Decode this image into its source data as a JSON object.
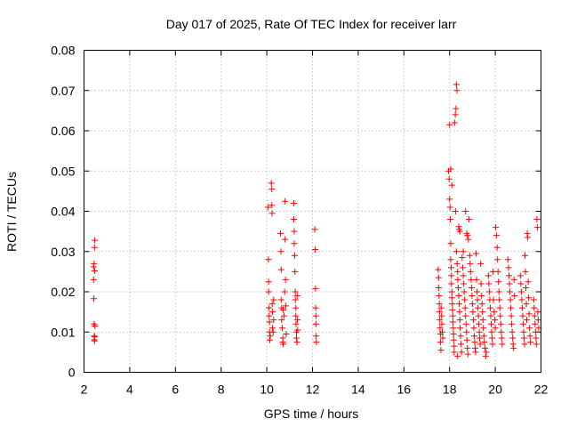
{
  "chart_data": {
    "type": "scatter",
    "title": "Day 017 of 2025, Rate Of TEC Index for receiver larr",
    "xlabel": "GPS time / hours",
    "ylabel": "ROTI / TECUs",
    "xlim": [
      2,
      22
    ],
    "ylim": [
      0,
      0.08
    ],
    "xticks": [
      2,
      4,
      6,
      8,
      10,
      12,
      14,
      16,
      18,
      20,
      22
    ],
    "yticks": [
      0,
      0.01,
      0.02,
      0.03,
      0.04,
      0.05,
      0.06,
      0.07,
      0.08
    ],
    "xtick_labels": [
      "2",
      "4",
      "6",
      "8",
      "10",
      "12",
      "14",
      "16",
      "18",
      "20",
      "22"
    ],
    "ytick_labels": [
      "0",
      "0.01",
      "0.02",
      "0.03",
      "0.04",
      "0.05",
      "0.06",
      "0.07",
      "0.08"
    ],
    "grid": true,
    "marker": "+",
    "marker_color": "#ff0000",
    "series": [
      {
        "name": "ROTI",
        "points": [
          [
            2.42,
            0.0262
          ],
          [
            2.42,
            0.023
          ],
          [
            2.43,
            0.0183
          ],
          [
            2.44,
            0.012
          ],
          [
            2.45,
            0.009
          ],
          [
            2.45,
            0.0081
          ],
          [
            2.46,
            0.0078
          ],
          [
            2.47,
            0.0088
          ],
          [
            2.44,
            0.027
          ],
          [
            2.46,
            0.031
          ],
          [
            2.47,
            0.0328
          ],
          [
            2.48,
            0.0115
          ],
          [
            2.47,
            0.0252
          ],
          [
            10.05,
            0.041
          ],
          [
            10.07,
            0.028
          ],
          [
            10.08,
            0.0225
          ],
          [
            10.08,
            0.02
          ],
          [
            10.1,
            0.016
          ],
          [
            10.1,
            0.014
          ],
          [
            10.12,
            0.0125
          ],
          [
            10.12,
            0.01
          ],
          [
            10.13,
            0.008
          ],
          [
            10.15,
            0.009
          ],
          [
            10.2,
            0.047
          ],
          [
            10.22,
            0.0455
          ],
          [
            10.22,
            0.0415
          ],
          [
            10.23,
            0.0395
          ],
          [
            10.24,
            0.017
          ],
          [
            10.25,
            0.015
          ],
          [
            10.25,
            0.011
          ],
          [
            10.28,
            0.01
          ],
          [
            10.3,
            0.018
          ],
          [
            10.3,
            0.013
          ],
          [
            10.6,
            0.0345
          ],
          [
            10.62,
            0.03
          ],
          [
            10.63,
            0.0255
          ],
          [
            10.63,
            0.018
          ],
          [
            10.65,
            0.016
          ],
          [
            10.65,
            0.013
          ],
          [
            10.68,
            0.011
          ],
          [
            10.7,
            0.0085
          ],
          [
            10.7,
            0.0075
          ],
          [
            10.72,
            0.007
          ],
          [
            10.72,
            0.0155
          ],
          [
            10.75,
            0.014
          ],
          [
            10.78,
            0.02
          ],
          [
            10.8,
            0.0425
          ],
          [
            10.8,
            0.033
          ],
          [
            10.82,
            0.023
          ],
          [
            10.83,
            0.0165
          ],
          [
            10.85,
            0.0095
          ],
          [
            11.18,
            0.042
          ],
          [
            11.18,
            0.038
          ],
          [
            11.2,
            0.035
          ],
          [
            11.2,
            0.032
          ],
          [
            11.22,
            0.029
          ],
          [
            11.23,
            0.025
          ],
          [
            11.25,
            0.02
          ],
          [
            11.25,
            0.018
          ],
          [
            11.27,
            0.016
          ],
          [
            11.27,
            0.014
          ],
          [
            11.28,
            0.012
          ],
          [
            11.3,
            0.01
          ],
          [
            11.3,
            0.0085
          ],
          [
            11.32,
            0.0075
          ],
          [
            11.33,
            0.019
          ],
          [
            11.34,
            0.013
          ],
          [
            11.35,
            0.0105
          ],
          [
            12.1,
            0.0355
          ],
          [
            12.12,
            0.0305
          ],
          [
            12.13,
            0.0208
          ],
          [
            12.14,
            0.016
          ],
          [
            12.15,
            0.014
          ],
          [
            12.15,
            0.012
          ],
          [
            12.16,
            0.009
          ],
          [
            12.17,
            0.0075
          ],
          [
            17.5,
            0.0255
          ],
          [
            17.52,
            0.0235
          ],
          [
            17.52,
            0.021
          ],
          [
            17.54,
            0.019
          ],
          [
            17.55,
            0.017
          ],
          [
            17.56,
            0.015
          ],
          [
            17.57,
            0.013
          ],
          [
            17.58,
            0.011
          ],
          [
            17.6,
            0.0095
          ],
          [
            17.6,
            0.0075
          ],
          [
            17.62,
            0.0055
          ],
          [
            17.63,
            0.016
          ],
          [
            17.65,
            0.014
          ],
          [
            17.66,
            0.012
          ],
          [
            17.68,
            0.01
          ],
          [
            17.7,
            0.0085
          ],
          [
            17.95,
            0.05
          ],
          [
            17.98,
            0.048
          ],
          [
            18.0,
            0.043
          ],
          [
            18.02,
            0.041
          ],
          [
            18.03,
            0.038
          ],
          [
            18.05,
            0.032
          ],
          [
            18.05,
            0.028
          ],
          [
            18.07,
            0.026
          ],
          [
            18.08,
            0.024
          ],
          [
            18.08,
            0.022
          ],
          [
            18.1,
            0.02
          ],
          [
            18.1,
            0.0185
          ],
          [
            18.12,
            0.017
          ],
          [
            18.13,
            0.0155
          ],
          [
            18.14,
            0.014
          ],
          [
            18.15,
            0.0125
          ],
          [
            18.16,
            0.011
          ],
          [
            18.17,
            0.0095
          ],
          [
            18.18,
            0.008
          ],
          [
            18.2,
            0.0065
          ],
          [
            18.2,
            0.005
          ],
          [
            18.0,
            0.0615
          ],
          [
            18.05,
            0.0505
          ],
          [
            18.1,
            0.0465
          ],
          [
            18.22,
            0.062
          ],
          [
            18.25,
            0.064
          ],
          [
            18.28,
            0.0655
          ],
          [
            18.3,
            0.0715
          ],
          [
            18.32,
            0.07
          ],
          [
            18.26,
            0.04
          ],
          [
            18.3,
            0.03
          ],
          [
            18.33,
            0.027
          ],
          [
            18.35,
            0.025
          ],
          [
            18.36,
            0.023
          ],
          [
            18.38,
            0.021
          ],
          [
            18.4,
            0.019
          ],
          [
            18.42,
            0.017
          ],
          [
            18.44,
            0.015
          ],
          [
            18.45,
            0.013
          ],
          [
            18.46,
            0.011
          ],
          [
            18.48,
            0.009
          ],
          [
            18.5,
            0.007
          ],
          [
            18.52,
            0.005
          ],
          [
            18.35,
            0.004
          ],
          [
            18.4,
            0.0362
          ],
          [
            18.42,
            0.0355
          ],
          [
            18.45,
            0.035
          ],
          [
            18.55,
            0.0285
          ],
          [
            18.58,
            0.026
          ],
          [
            18.6,
            0.024
          ],
          [
            18.62,
            0.022
          ],
          [
            18.64,
            0.02
          ],
          [
            18.66,
            0.018
          ],
          [
            18.68,
            0.016
          ],
          [
            18.7,
            0.014
          ],
          [
            18.72,
            0.012
          ],
          [
            18.74,
            0.01
          ],
          [
            18.76,
            0.008
          ],
          [
            18.78,
            0.006
          ],
          [
            18.8,
            0.0045
          ],
          [
            18.7,
            0.04
          ],
          [
            18.75,
            0.0345
          ],
          [
            18.78,
            0.034
          ],
          [
            18.82,
            0.033
          ],
          [
            18.6,
            0.03
          ],
          [
            18.85,
            0.038
          ],
          [
            18.88,
            0.029
          ],
          [
            18.9,
            0.027
          ],
          [
            18.92,
            0.025
          ],
          [
            18.94,
            0.023
          ],
          [
            18.96,
            0.021
          ],
          [
            18.98,
            0.019
          ],
          [
            19.0,
            0.017
          ],
          [
            19.02,
            0.015
          ],
          [
            19.04,
            0.013
          ],
          [
            19.06,
            0.011
          ],
          [
            19.08,
            0.009
          ],
          [
            19.1,
            0.0075
          ],
          [
            19.12,
            0.006
          ],
          [
            19.14,
            0.005
          ],
          [
            19.16,
            0.0295
          ],
          [
            19.18,
            0.023
          ],
          [
            19.2,
            0.02
          ],
          [
            19.22,
            0.018
          ],
          [
            19.24,
            0.016
          ],
          [
            19.26,
            0.014
          ],
          [
            19.28,
            0.012
          ],
          [
            19.3,
            0.01
          ],
          [
            19.32,
            0.0085
          ],
          [
            19.34,
            0.007
          ],
          [
            19.36,
            0.027
          ],
          [
            19.38,
            0.022
          ],
          [
            19.4,
            0.019
          ],
          [
            19.42,
            0.017
          ],
          [
            19.44,
            0.015
          ],
          [
            19.46,
            0.013
          ],
          [
            19.48,
            0.011
          ],
          [
            19.5,
            0.009
          ],
          [
            19.52,
            0.0075
          ],
          [
            19.55,
            0.006
          ],
          [
            19.58,
            0.004
          ],
          [
            19.6,
            0.005
          ],
          [
            19.7,
            0.024
          ],
          [
            19.72,
            0.022
          ],
          [
            19.74,
            0.02
          ],
          [
            19.76,
            0.018
          ],
          [
            19.78,
            0.016
          ],
          [
            19.8,
            0.014
          ],
          [
            19.82,
            0.012
          ],
          [
            19.84,
            0.01
          ],
          [
            19.86,
            0.0085
          ],
          [
            19.88,
            0.007
          ],
          [
            19.9,
            0.025
          ],
          [
            19.92,
            0.018
          ],
          [
            19.95,
            0.015
          ],
          [
            19.98,
            0.013
          ],
          [
            20.0,
            0.011
          ],
          [
            20.02,
            0.036
          ],
          [
            20.05,
            0.034
          ],
          [
            20.08,
            0.031
          ],
          [
            20.1,
            0.028
          ],
          [
            20.12,
            0.025
          ],
          [
            20.14,
            0.0225
          ],
          [
            20.16,
            0.02
          ],
          [
            20.18,
            0.018
          ],
          [
            20.2,
            0.016
          ],
          [
            20.22,
            0.014
          ],
          [
            20.24,
            0.012
          ],
          [
            20.26,
            0.01
          ],
          [
            20.28,
            0.0085
          ],
          [
            20.3,
            0.007
          ],
          [
            20.55,
            0.028
          ],
          [
            20.58,
            0.026
          ],
          [
            20.6,
            0.024
          ],
          [
            20.62,
            0.022
          ],
          [
            20.64,
            0.02
          ],
          [
            20.66,
            0.018
          ],
          [
            20.68,
            0.016
          ],
          [
            20.7,
            0.014
          ],
          [
            20.72,
            0.012
          ],
          [
            20.74,
            0.01
          ],
          [
            20.76,
            0.0085
          ],
          [
            20.78,
            0.007
          ],
          [
            20.8,
            0.006
          ],
          [
            20.82,
            0.023
          ],
          [
            20.84,
            0.019
          ],
          [
            21.1,
            0.024
          ],
          [
            21.12,
            0.022
          ],
          [
            21.14,
            0.02
          ],
          [
            21.16,
            0.018
          ],
          [
            21.18,
            0.016
          ],
          [
            21.2,
            0.014
          ],
          [
            21.22,
            0.012
          ],
          [
            21.24,
            0.01
          ],
          [
            21.26,
            0.0085
          ],
          [
            21.28,
            0.007
          ],
          [
            21.3,
            0.029
          ],
          [
            21.32,
            0.025
          ],
          [
            21.34,
            0.021
          ],
          [
            21.36,
            0.017
          ],
          [
            21.38,
            0.013
          ],
          [
            21.4,
            0.0345
          ],
          [
            21.42,
            0.0335
          ],
          [
            21.44,
            0.0225
          ],
          [
            21.46,
            0.0185
          ],
          [
            21.48,
            0.0145
          ],
          [
            21.5,
            0.011
          ],
          [
            21.52,
            0.009
          ],
          [
            21.54,
            0.0075
          ],
          [
            21.68,
            0.018
          ],
          [
            21.7,
            0.016
          ],
          [
            21.72,
            0.014
          ],
          [
            21.74,
            0.012
          ],
          [
            21.76,
            0.01
          ],
          [
            21.78,
            0.0085
          ],
          [
            21.8,
            0.007
          ],
          [
            21.82,
            0.038
          ],
          [
            21.84,
            0.036
          ],
          [
            21.86,
            0.015
          ],
          [
            21.88,
            0.013
          ],
          [
            21.9,
            0.011
          ]
        ]
      }
    ]
  }
}
